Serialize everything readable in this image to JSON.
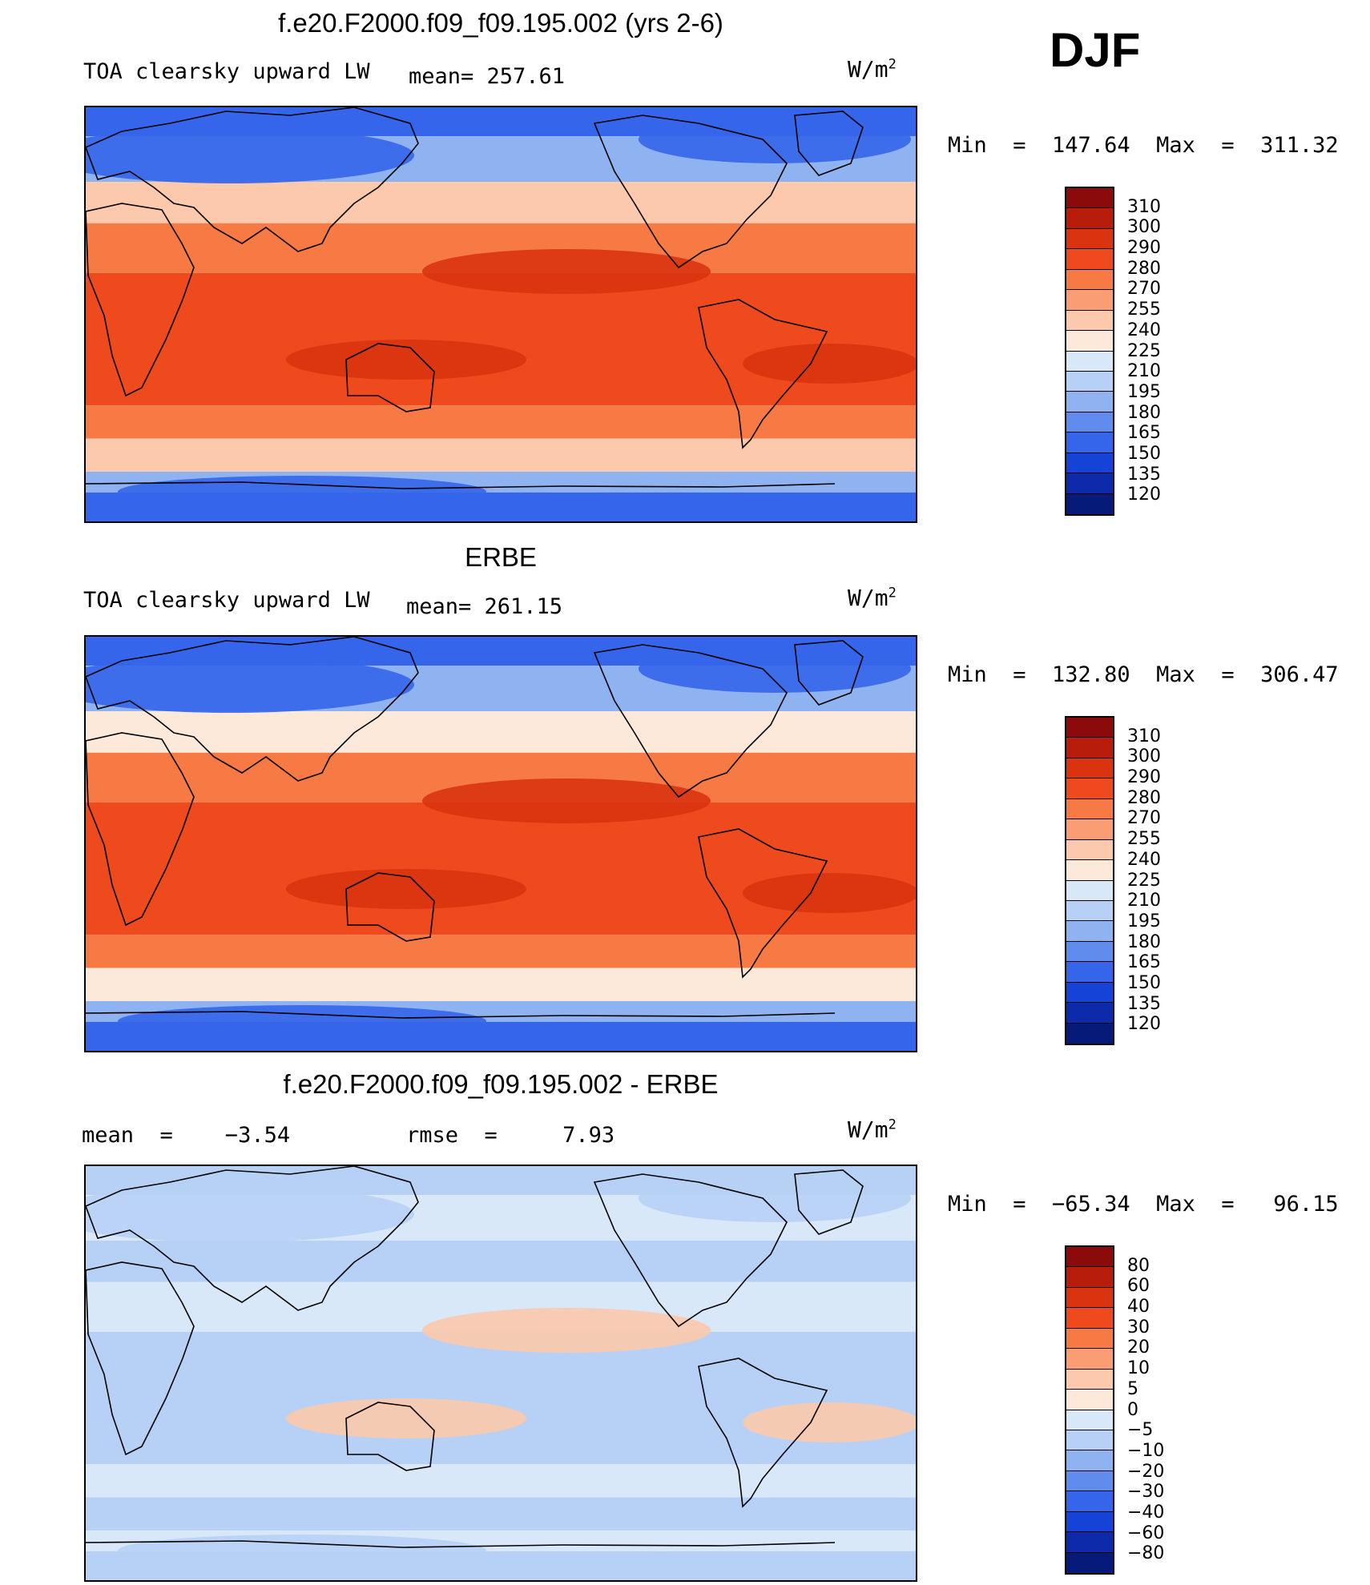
{
  "season": "DJF",
  "panels": [
    {
      "title": "f.e20.F2000.f09_f09.195.002 (yrs 2-6)",
      "variable": "TOA clearsky upward LW",
      "stat_left": "",
      "stat_mid": "mean= 257.61",
      "units_base": "W/m",
      "units_exp": "2",
      "minmax": "Min  =  147.64  Max  =  311.32",
      "colorbar": {
        "labels": [
          "310",
          "300",
          "290",
          "280",
          "270",
          "255",
          "240",
          "225",
          "210",
          "195",
          "180",
          "165",
          "150",
          "135",
          "120"
        ],
        "colors": [
          "#8b0a0a",
          "#b81d0c",
          "#d9340f",
          "#ef4a1e",
          "#f77a45",
          "#fa9d74",
          "#fcc9ac",
          "#fde9d9",
          "#d8e8f8",
          "#b7d0f5",
          "#8fb3f0",
          "#5f8ced",
          "#3565ea",
          "#1543d8",
          "#0c2aa9",
          "#061a7a"
        ]
      },
      "map_colors": {
        "polar": "#3565ea",
        "subpolar": "#8fb3f0",
        "midlat": "#fcc9ac",
        "subtrop": "#f77a45",
        "tropics": "#ef4a1e",
        "hot": "#d9340f"
      }
    },
    {
      "title": "ERBE",
      "variable": "TOA clearsky upward LW",
      "stat_left": "",
      "stat_mid": "mean= 261.15",
      "units_base": "W/m",
      "units_exp": "2",
      "minmax": "Min  =  132.80  Max  =  306.47",
      "colorbar": {
        "labels": [
          "310",
          "300",
          "290",
          "280",
          "270",
          "255",
          "240",
          "225",
          "210",
          "195",
          "180",
          "165",
          "150",
          "135",
          "120"
        ],
        "colors": [
          "#8b0a0a",
          "#b81d0c",
          "#d9340f",
          "#ef4a1e",
          "#f77a45",
          "#fa9d74",
          "#fcc9ac",
          "#fde9d9",
          "#d8e8f8",
          "#b7d0f5",
          "#8fb3f0",
          "#5f8ced",
          "#3565ea",
          "#1543d8",
          "#0c2aa9",
          "#061a7a"
        ]
      },
      "map_colors": {
        "polar": "#3565ea",
        "subpolar": "#8fb3f0",
        "midlat": "#fde9d9",
        "subtrop": "#f77a45",
        "tropics": "#ef4a1e",
        "hot": "#d9340f"
      }
    },
    {
      "title": "f.e20.F2000.f09_f09.195.002 - ERBE",
      "variable": "",
      "stat_left": "mean  =    −3.54",
      "stat_mid": "rmse  =     7.93",
      "units_base": "W/m",
      "units_exp": "2",
      "minmax": "Min  =  −65.34  Max  =   96.15",
      "colorbar": {
        "labels": [
          "80",
          "60",
          "40",
          "30",
          "20",
          "10",
          "5",
          "0",
          "−5",
          "−10",
          "−20",
          "−30",
          "−40",
          "−60",
          "−80"
        ],
        "colors": [
          "#8b0a0a",
          "#b81d0c",
          "#d9340f",
          "#ef4a1e",
          "#f77a45",
          "#fa9d74",
          "#fcc9ac",
          "#fde9d9",
          "#d8e8f8",
          "#b7d0f5",
          "#8fb3f0",
          "#5f8ced",
          "#3565ea",
          "#1543d8",
          "#0c2aa9",
          "#061a7a"
        ]
      },
      "map_colors": {
        "polar": "#b7d0f5",
        "subpolar": "#d8e8f8",
        "midlat": "#b7d0f5",
        "subtrop": "#d8e8f8",
        "tropics": "#b7d0f5",
        "hot": "#fcc9ac"
      }
    }
  ]
}
